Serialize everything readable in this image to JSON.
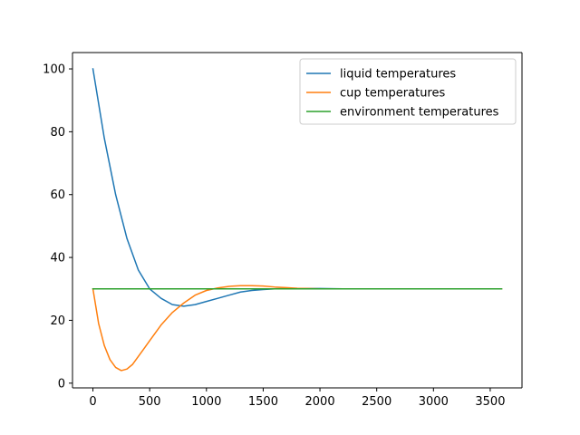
{
  "chart_data": {
    "type": "line",
    "title": "",
    "xlabel": "",
    "ylabel": "",
    "xlim": [
      -180,
      3780
    ],
    "ylim": [
      -1.5,
      105.2
    ],
    "xticks": [
      0,
      500,
      1000,
      1500,
      2000,
      2500,
      3000,
      3500
    ],
    "yticks": [
      0,
      20,
      40,
      60,
      80,
      100
    ],
    "grid": false,
    "legend_position": "top-right",
    "series": [
      {
        "name": "liquid temperatures",
        "color": "#1f77b4",
        "x": [
          0,
          100,
          200,
          300,
          400,
          500,
          600,
          700,
          800,
          900,
          1000,
          1100,
          1200,
          1300,
          1400,
          1500,
          1600,
          1700,
          1800,
          2000,
          2200,
          2500,
          3000,
          3600
        ],
        "y": [
          100,
          78,
          60,
          46,
          36,
          30,
          27,
          25,
          24.5,
          25,
          26,
          27,
          28,
          29,
          29.5,
          29.8,
          30,
          30.1,
          30.1,
          30.1,
          30,
          30,
          30,
          30
        ]
      },
      {
        "name": "cup temperatures",
        "color": "#ff7f0e",
        "x": [
          0,
          50,
          100,
          150,
          200,
          250,
          300,
          350,
          400,
          450,
          500,
          600,
          700,
          800,
          900,
          1000,
          1100,
          1200,
          1300,
          1400,
          1500,
          1600,
          1700,
          1800,
          1900,
          2000,
          2200,
          2500,
          3000,
          3600
        ],
        "y": [
          30,
          19,
          12,
          7.5,
          5,
          4,
          4.5,
          6,
          8.5,
          11,
          13.5,
          18.5,
          22.5,
          25.5,
          28,
          29.5,
          30.3,
          30.8,
          31,
          31,
          30.9,
          30.6,
          30.4,
          30.2,
          30.1,
          30,
          30,
          30,
          30,
          30
        ]
      },
      {
        "name": "environment temperatures",
        "color": "#2ca02c",
        "x": [
          0,
          3600
        ],
        "y": [
          30,
          30
        ]
      }
    ]
  }
}
